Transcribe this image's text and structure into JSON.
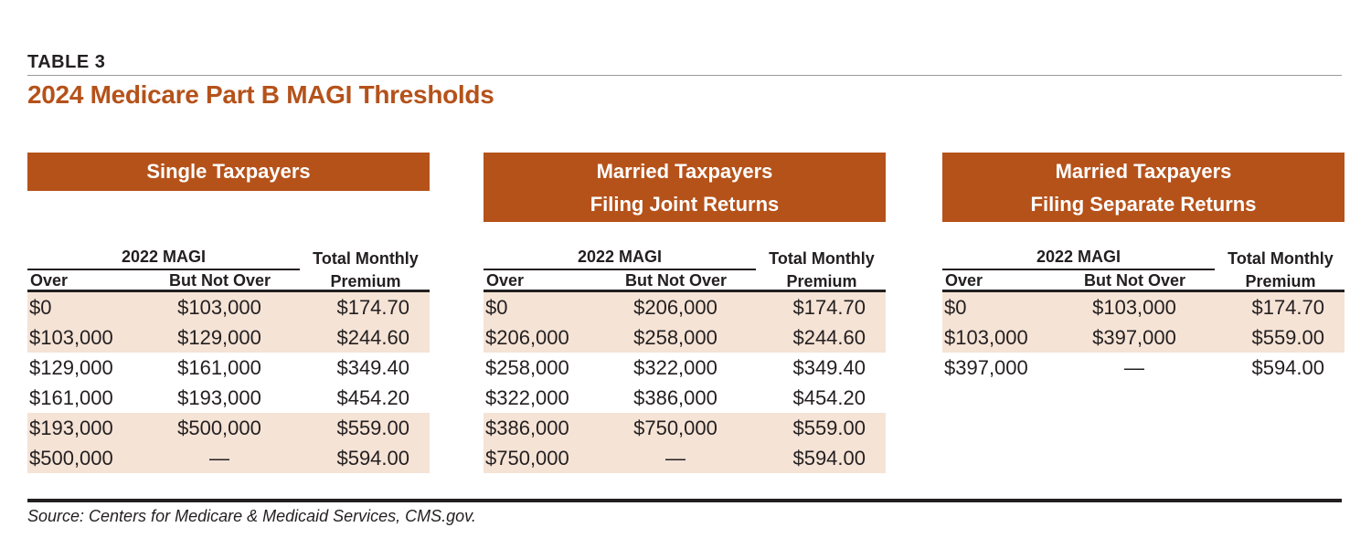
{
  "label": "TABLE 3",
  "title": "2024 Medicare Part B MAGI Thresholds",
  "colheaders": {
    "magi": "2022 MAGI",
    "over": "Over",
    "but_not_over": "But Not Over",
    "premium_line1": "Total Monthly",
    "premium_line2": "Premium"
  },
  "panels": [
    {
      "heading": [
        "Single Taxpayers"
      ],
      "rows": [
        [
          "$0",
          "$103,000",
          "$174.70"
        ],
        [
          "$103,000",
          "$129,000",
          "$244.60"
        ],
        [
          "$129,000",
          "$161,000",
          "$349.40"
        ],
        [
          "$161,000",
          "$193,000",
          "$454.20"
        ],
        [
          "$193,000",
          "$500,000",
          "$559.00"
        ],
        [
          "$500,000",
          "—",
          "$594.00"
        ]
      ],
      "shaded": [
        true,
        true,
        false,
        false,
        true,
        true
      ]
    },
    {
      "heading": [
        "Married Taxpayers",
        "Filing Joint Returns"
      ],
      "rows": [
        [
          "$0",
          "$206,000",
          "$174.70"
        ],
        [
          "$206,000",
          "$258,000",
          "$244.60"
        ],
        [
          "$258,000",
          "$322,000",
          "$349.40"
        ],
        [
          "$322,000",
          "$386,000",
          "$454.20"
        ],
        [
          "$386,000",
          "$750,000",
          "$559.00"
        ],
        [
          "$750,000",
          "—",
          "$594.00"
        ]
      ],
      "shaded": [
        true,
        true,
        false,
        false,
        true,
        true
      ]
    },
    {
      "heading": [
        "Married Taxpayers",
        "Filing Separate Returns"
      ],
      "rows": [
        [
          "$0",
          "$103,000",
          "$174.70"
        ],
        [
          "$103,000",
          "$397,000",
          "$559.00"
        ],
        [
          "$397,000",
          "—",
          "$594.00"
        ]
      ],
      "shaded": [
        true,
        true,
        false
      ]
    }
  ],
  "source": "Source: Centers for Medicare & Medicaid Services, CMS.gov.",
  "colors": {
    "accent": "#b5521a",
    "shade": "#f5e3d6"
  }
}
